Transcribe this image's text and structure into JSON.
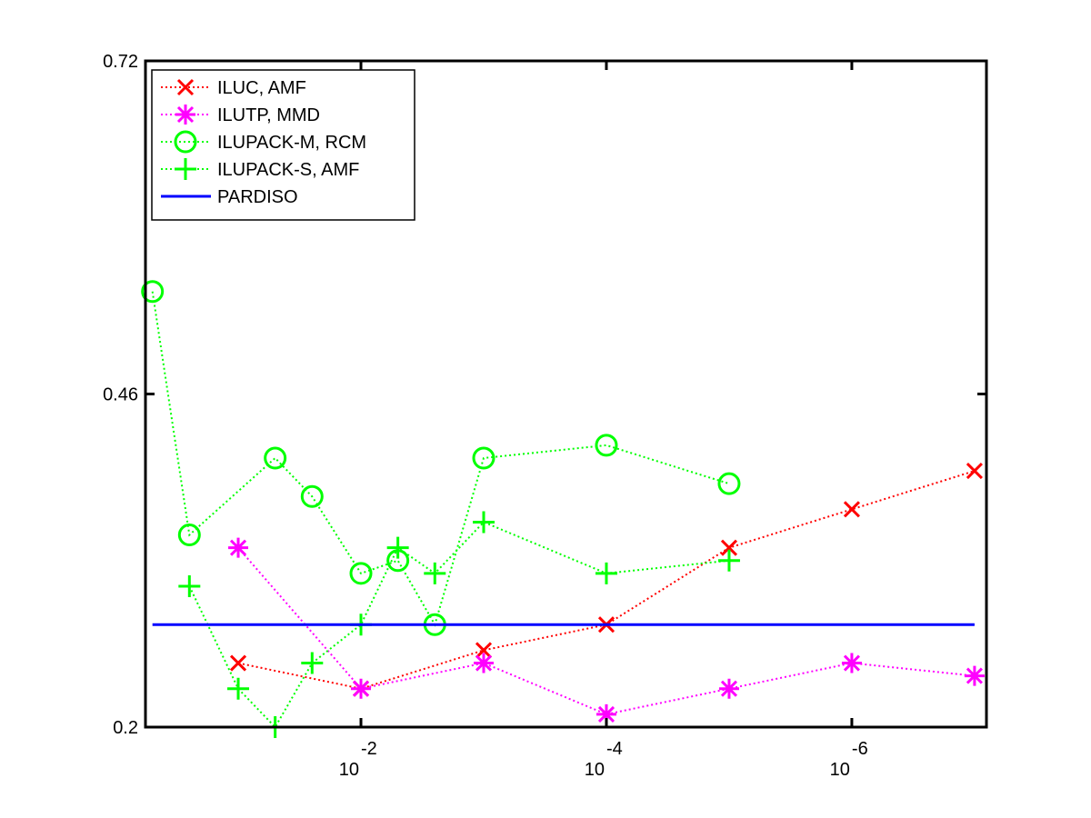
{
  "chart_data": {
    "type": "line",
    "xscale": "log",
    "xreverse": true,
    "xlim": [
      0.57,
      8e-08
    ],
    "ylim": [
      0.2,
      0.72
    ],
    "xticks": [
      {
        "value": 0.01,
        "label": "10",
        "exponent": "-2"
      },
      {
        "value": 0.0001,
        "label": "10",
        "exponent": "-4"
      },
      {
        "value": 1e-06,
        "label": "10",
        "exponent": "-6"
      }
    ],
    "yticks": [
      0.2,
      0.46,
      0.72
    ],
    "grid": false,
    "legend": "upper left",
    "series": [
      {
        "name": "ILUC, AMF",
        "color": "#ff0000",
        "marker": "x",
        "linestyle": "dotted",
        "x": [
          0.1,
          0.01,
          0.001,
          0.0001,
          1e-05,
          1e-06,
          1e-07
        ],
        "values": [
          0.25,
          0.23,
          0.26,
          0.28,
          0.34,
          0.37,
          0.4
        ]
      },
      {
        "name": "ILUTP, MMD",
        "color": "#ff00ff",
        "marker": "*",
        "linestyle": "dotted",
        "x": [
          0.1,
          0.01,
          0.001,
          0.0001,
          1e-05,
          1e-06,
          1e-07
        ],
        "values": [
          0.34,
          0.23,
          0.25,
          0.21,
          0.23,
          0.25,
          0.24
        ]
      },
      {
        "name": "ILUPACK-M, RCM",
        "color": "#00ff00",
        "marker": "o",
        "linestyle": "dotted",
        "x": [
          0.5,
          0.25,
          0.05,
          0.025,
          0.01,
          0.005,
          0.0025,
          0.001,
          0.0001,
          1e-05
        ],
        "values": [
          0.54,
          0.35,
          0.41,
          0.38,
          0.32,
          0.33,
          0.28,
          0.41,
          0.42,
          0.39
        ]
      },
      {
        "name": "ILUPACK-S, AMF",
        "color": "#00ff00",
        "marker": "+",
        "linestyle": "dotted",
        "x": [
          0.25,
          0.1,
          0.05,
          0.025,
          0.01,
          0.005,
          0.0025,
          0.001,
          0.0001,
          1e-05
        ],
        "values": [
          0.31,
          0.23,
          0.2,
          0.25,
          0.28,
          0.34,
          0.32,
          0.36,
          0.32,
          0.33
        ]
      },
      {
        "name": "PARDISO",
        "color": "#0000ff",
        "marker": "none",
        "linestyle": "solid",
        "x": [
          0.5,
          1e-07
        ],
        "values": [
          0.28,
          0.28
        ]
      }
    ]
  }
}
